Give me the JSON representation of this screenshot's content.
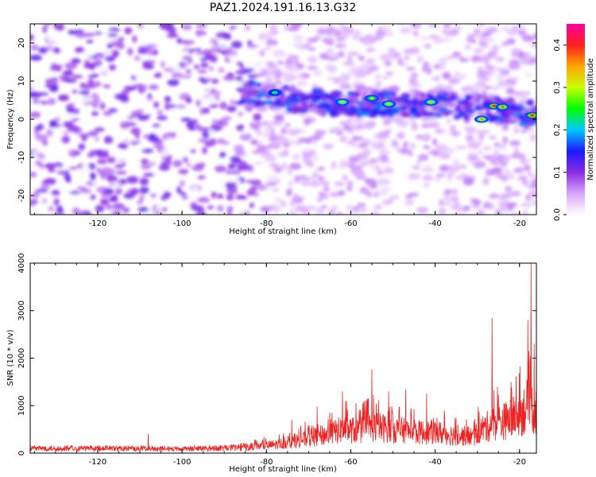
{
  "title": "PAZ1.2024.191.16.13.G32",
  "chart_data": [
    {
      "type": "heatmap",
      "title": "PAZ1.2024.191.16.13.G32",
      "xlabel": "Height of straight line (km)",
      "ylabel": "Frequency (Hz)",
      "xlim": [
        -136,
        -16
      ],
      "ylim": [
        -25,
        25
      ],
      "xticks": [
        -120,
        -100,
        -80,
        -60,
        -40,
        -20
      ],
      "yticks": [
        -20,
        -10,
        0,
        10,
        20
      ],
      "colorbar": {
        "label": "Normalized spectral amplitude",
        "range": [
          0.0,
          0.45
        ],
        "ticks": [
          "0.0",
          "0.1",
          "0.2",
          "0.3",
          "0.4"
        ],
        "colormap": [
          "#ffffff",
          "#d7a6ff",
          "#8a2be2",
          "#1a1aff",
          "#00c8ff",
          "#00ff00",
          "#c8ff00",
          "#ffa500",
          "#ff2020",
          "#ff00a0"
        ]
      },
      "ridge": {
        "description_points": [
          {
            "x": -84,
            "y": 7
          },
          {
            "x": -72,
            "y": 5
          },
          {
            "x": -60,
            "y": 4
          },
          {
            "x": -50,
            "y": 4
          },
          {
            "x": -40,
            "y": 4
          },
          {
            "x": -30,
            "y": 3
          },
          {
            "x": -20,
            "y": 2
          },
          {
            "x": -16,
            "y": 1
          }
        ],
        "peak_values": [
          {
            "x": -78,
            "y": 7,
            "v": 0.25
          },
          {
            "x": -62,
            "y": 4.5,
            "v": 0.33
          },
          {
            "x": -55,
            "y": 5.5,
            "v": 0.3
          },
          {
            "x": -51,
            "y": 4,
            "v": 0.33
          },
          {
            "x": -41,
            "y": 4.5,
            "v": 0.33
          },
          {
            "x": -29,
            "y": 0,
            "v": 0.36
          },
          {
            "x": -26,
            "y": 3.5,
            "v": 0.42
          },
          {
            "x": -24,
            "y": 3.2,
            "v": 0.38
          },
          {
            "x": -17,
            "y": 1,
            "v": 0.42
          }
        ]
      }
    },
    {
      "type": "line",
      "xlabel": "Height of straight line (km)",
      "ylabel": "SNR (10 * v/v)",
      "xlim": [
        -136,
        -16
      ],
      "ylim": [
        0,
        4000
      ],
      "xticks": [
        -120,
        -100,
        -80,
        -60,
        -40,
        -20
      ],
      "yticks": [
        0,
        1000,
        2000,
        3000,
        4000
      ],
      "color": "#ee2222",
      "envelope": [
        {
          "x": -136,
          "y": 150
        },
        {
          "x": -120,
          "y": 150
        },
        {
          "x": -100,
          "y": 140
        },
        {
          "x": -90,
          "y": 160
        },
        {
          "x": -80,
          "y": 250
        },
        {
          "x": -75,
          "y": 350
        },
        {
          "x": -70,
          "y": 500
        },
        {
          "x": -65,
          "y": 650
        },
        {
          "x": -62,
          "y": 800
        },
        {
          "x": -58,
          "y": 750
        },
        {
          "x": -55,
          "y": 900
        },
        {
          "x": -50,
          "y": 800
        },
        {
          "x": -45,
          "y": 700
        },
        {
          "x": -40,
          "y": 700
        },
        {
          "x": -35,
          "y": 600
        },
        {
          "x": -31,
          "y": 550
        },
        {
          "x": -29,
          "y": 800
        },
        {
          "x": -26,
          "y": 1000
        },
        {
          "x": -23,
          "y": 1100
        },
        {
          "x": -20,
          "y": 1300
        },
        {
          "x": -18,
          "y": 1600
        },
        {
          "x": -16,
          "y": 1400
        }
      ],
      "spikes": [
        {
          "x": -108,
          "y": 400
        },
        {
          "x": -74,
          "y": 700
        },
        {
          "x": -68,
          "y": 980
        },
        {
          "x": -62,
          "y": 1300
        },
        {
          "x": -55,
          "y": 1760
        },
        {
          "x": -51,
          "y": 1300
        },
        {
          "x": -47,
          "y": 1350
        },
        {
          "x": -42,
          "y": 1250
        },
        {
          "x": -26.5,
          "y": 2850
        },
        {
          "x": -22,
          "y": 1500
        },
        {
          "x": -18,
          "y": 2800
        },
        {
          "x": -17.3,
          "y": 4000
        },
        {
          "x": -16.5,
          "y": 2300
        }
      ]
    }
  ]
}
